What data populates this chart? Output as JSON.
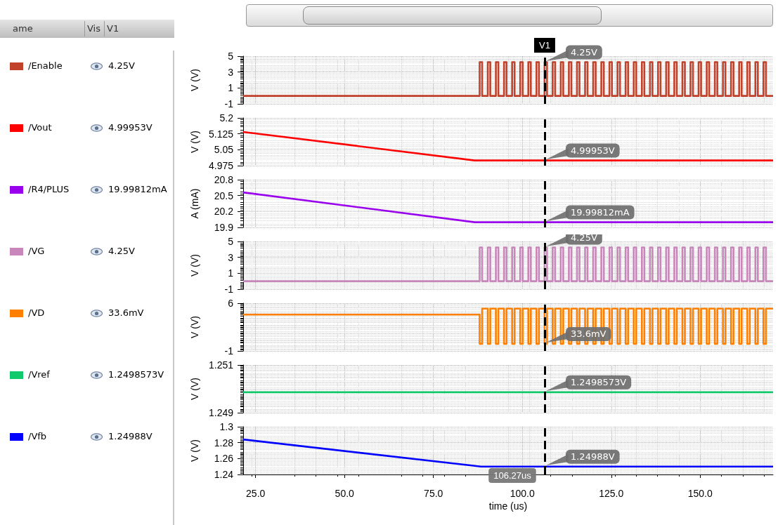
{
  "chart_data": [
    {
      "type": "step",
      "ylabel": "V (V)",
      "xlim": [
        21.5,
        170.5
      ],
      "xticks": [
        25,
        50,
        75,
        100,
        125,
        150
      ],
      "ylim": [
        -1,
        5
      ],
      "yticks": [
        -1,
        1,
        3,
        5
      ],
      "grid": true,
      "legend": "left",
      "marker": "none",
      "tick_labels": "y",
      "series": [
        {
          "name": "/Enable",
          "color": "#c1412a",
          "x": [
            21.5,
            88.0,
            88.7,
            90.28,
            90.98,
            92.56,
            93.26,
            94.84,
            95.54,
            97.12,
            97.82,
            99.4,
            100.1,
            101.68,
            102.38,
            103.96,
            104.66,
            106.24,
            106.94,
            108.52,
            109.22,
            110.8,
            111.5,
            113.08,
            113.78,
            115.36,
            116.06,
            117.64,
            118.34,
            119.92,
            120.62,
            122.2,
            122.9,
            124.48,
            125.18,
            126.76,
            127.46,
            129.04,
            129.74,
            131.32,
            132.02,
            133.6,
            134.3,
            135.88,
            136.58,
            138.16,
            138.86,
            140.44,
            141.14,
            142.72,
            143.42,
            145.0,
            145.7,
            147.28,
            147.98,
            149.56,
            150.26,
            151.84,
            152.54,
            154.12,
            154.82,
            156.4,
            157.1,
            158.68,
            159.38,
            160.96,
            161.66,
            163.24,
            163.94,
            165.52,
            166.22,
            167.8,
            168.5,
            170.5
          ],
          "values": [
            0,
            4.25,
            0,
            4.25,
            0,
            4.25,
            0,
            4.25,
            0,
            4.25,
            0,
            4.25,
            0,
            4.25,
            0,
            4.25,
            0,
            4.25,
            0,
            4.25,
            0,
            4.25,
            0,
            4.25,
            0,
            4.25,
            0,
            4.25,
            0,
            4.25,
            0,
            4.25,
            0,
            4.25,
            0,
            4.25,
            0,
            4.25,
            0,
            4.25,
            0,
            4.25,
            0,
            4.25,
            0,
            4.25,
            0,
            4.25,
            0,
            4.25,
            0,
            4.25,
            0,
            4.25,
            0,
            4.25,
            0,
            4.25,
            0,
            4.25,
            0,
            4.25,
            0,
            4.25,
            0,
            4.25,
            0,
            4.25,
            0,
            4.25,
            0,
            4.25,
            0,
            0
          ]
        }
      ],
      "annotations": [
        "ame",
        "Vis",
        "V1",
        "4.25V",
        "4.25V"
      ],
      "ref_lines": [
        {
          "axis": "x",
          "value": 106.27,
          "label": "V1",
          "color": "#000000",
          "line_style": "dashed"
        }
      ]
    },
    {
      "type": "line",
      "ylabel": "V (V)",
      "xlim": [
        21.5,
        170.5
      ],
      "xticks": [
        25,
        50,
        75,
        100,
        125,
        150
      ],
      "ylim": [
        4.975,
        5.2
      ],
      "yticks": [
        4.975,
        5.05,
        5.125,
        5.2
      ],
      "grid": true,
      "legend": "left",
      "marker": "none",
      "tick_labels": "y",
      "series": [
        {
          "name": "/Vout",
          "color": "#ff0000",
          "x": [
            21.5,
            86.6,
            170.5
          ],
          "values": [
            5.134,
            4.9995,
            4.9995
          ]
        }
      ],
      "annotations": [
        "4.99953V",
        "4.99953V"
      ],
      "ref_lines": [
        {
          "axis": "x",
          "value": 106.27,
          "color": "#000000",
          "line_style": "dashed"
        }
      ]
    },
    {
      "type": "line",
      "ylabel": "A (mA)",
      "xlim": [
        21.5,
        170.5
      ],
      "xticks": [
        25,
        50,
        75,
        100,
        125,
        150
      ],
      "ylim": [
        19.9,
        20.8
      ],
      "yticks": [
        19.9,
        20.2,
        20.5,
        20.8
      ],
      "grid": true,
      "legend": "left",
      "marker": "none",
      "tick_labels": "y",
      "series": [
        {
          "name": "/R4/PLUS",
          "color": "#9900ee",
          "x": [
            21.5,
            86.6,
            170.5
          ],
          "values": [
            20.56,
            19.998,
            19.998
          ]
        }
      ],
      "annotations": [
        "19.99812mA",
        "19.99812mA"
      ],
      "ref_lines": [
        {
          "axis": "x",
          "value": 106.27,
          "color": "#000000",
          "line_style": "dashed"
        }
      ]
    },
    {
      "type": "step",
      "ylabel": "V (V)",
      "xlim": [
        21.5,
        170.5
      ],
      "xticks": [
        25,
        50,
        75,
        100,
        125,
        150
      ],
      "ylim": [
        -1,
        5
      ],
      "yticks": [
        -1,
        1,
        3,
        5
      ],
      "grid": true,
      "legend": "left",
      "marker": "none",
      "tick_labels": "y",
      "series": [
        {
          "name": "/VG",
          "color": "#c986bb",
          "x": [
            21.5,
            88.0,
            88.7,
            90.28,
            90.98,
            92.56,
            93.26,
            94.84,
            95.54,
            97.12,
            97.82,
            99.4,
            100.1,
            101.68,
            102.38,
            103.96,
            104.66,
            106.24,
            106.94,
            108.52,
            109.22,
            110.8,
            111.5,
            113.08,
            113.78,
            115.36,
            116.06,
            117.64,
            118.34,
            119.92,
            120.62,
            122.2,
            122.9,
            124.48,
            125.18,
            126.76,
            127.46,
            129.04,
            129.74,
            131.32,
            132.02,
            133.6,
            134.3,
            135.88,
            136.58,
            138.16,
            138.86,
            140.44,
            141.14,
            142.72,
            143.42,
            145.0,
            145.7,
            147.28,
            147.98,
            149.56,
            150.26,
            151.84,
            152.54,
            154.12,
            154.82,
            156.4,
            157.1,
            158.68,
            159.38,
            160.96,
            161.66,
            163.24,
            163.94,
            165.52,
            166.22,
            167.8,
            168.5,
            170.5
          ],
          "values": [
            0,
            4.25,
            0,
            4.25,
            0,
            4.25,
            0,
            4.25,
            0,
            4.25,
            0,
            4.25,
            0,
            4.25,
            0,
            4.25,
            0,
            4.25,
            0,
            4.25,
            0,
            4.25,
            0,
            4.25,
            0,
            4.25,
            0,
            4.25,
            0,
            4.25,
            0,
            4.25,
            0,
            4.25,
            0,
            4.25,
            0,
            4.25,
            0,
            4.25,
            0,
            4.25,
            0,
            4.25,
            0,
            4.25,
            0,
            4.25,
            0,
            4.25,
            0,
            4.25,
            0,
            4.25,
            0,
            4.25,
            0,
            4.25,
            0,
            4.25,
            0,
            4.25,
            0,
            4.25,
            0,
            4.25,
            0,
            4.25,
            0,
            4.25,
            0,
            4.25,
            0,
            0
          ]
        }
      ],
      "annotations": [
        "4.25V",
        "4.25V"
      ],
      "ref_lines": [
        {
          "axis": "x",
          "value": 106.27,
          "color": "#000000",
          "line_style": "dashed"
        }
      ]
    },
    {
      "type": "step",
      "ylabel": "V (V)",
      "xlim": [
        21.5,
        170.5
      ],
      "xticks": [
        25,
        50,
        75,
        100,
        125,
        150
      ],
      "ylim": [
        -1,
        6
      ],
      "yticks": [
        -1,
        6
      ],
      "grid": true,
      "legend": "left",
      "marker": "none",
      "tick_labels": "y",
      "series": [
        {
          "name": "/VD",
          "color": "#ff8000",
          "x": [
            21.5,
            88.0,
            88.7,
            90.28,
            90.98,
            92.56,
            93.26,
            94.84,
            95.54,
            97.12,
            97.82,
            99.4,
            100.1,
            101.68,
            102.38,
            103.96,
            104.66,
            106.24,
            106.94,
            108.52,
            109.22,
            110.8,
            111.5,
            113.08,
            113.78,
            115.36,
            116.06,
            117.64,
            118.34,
            119.92,
            120.62,
            122.2,
            122.9,
            124.48,
            125.18,
            126.76,
            127.46,
            129.04,
            129.74,
            131.32,
            132.02,
            133.6,
            134.3,
            135.88,
            136.58,
            138.16,
            138.86,
            140.44,
            141.14,
            142.72,
            143.42,
            145.0,
            145.7,
            147.28,
            147.98,
            149.56,
            150.26,
            151.84,
            152.54,
            154.12,
            154.82,
            156.4,
            157.1,
            158.68,
            159.38,
            160.96,
            161.66,
            163.24,
            163.94,
            165.52,
            166.22,
            167.8,
            168.5,
            170.5
          ],
          "values": [
            4.33,
            0.0336,
            5.2,
            0.0336,
            5.2,
            0.0336,
            5.2,
            0.0336,
            5.2,
            0.0336,
            5.2,
            0.0336,
            5.2,
            0.0336,
            5.2,
            0.0336,
            5.2,
            0.0336,
            5.2,
            0.0336,
            5.2,
            0.0336,
            5.2,
            0.0336,
            5.2,
            0.0336,
            5.2,
            0.0336,
            5.2,
            0.0336,
            5.2,
            0.0336,
            5.2,
            0.0336,
            5.2,
            0.0336,
            5.2,
            0.0336,
            5.2,
            0.0336,
            5.2,
            0.0336,
            5.2,
            0.0336,
            5.2,
            0.0336,
            5.2,
            0.0336,
            5.2,
            0.0336,
            5.2,
            0.0336,
            5.2,
            0.0336,
            5.2,
            0.0336,
            5.2,
            0.0336,
            5.2,
            0.0336,
            5.2,
            0.0336,
            5.2,
            0.0336,
            5.2,
            0.0336,
            5.2,
            0.0336,
            5.2,
            0.0336,
            5.2,
            0.0336,
            5.2,
            5.2
          ]
        }
      ],
      "annotations": [
        "33.6mV",
        "33.6mV"
      ],
      "ref_lines": [
        {
          "axis": "x",
          "value": 106.27,
          "color": "#000000",
          "line_style": "dashed"
        }
      ]
    },
    {
      "type": "line",
      "ylabel": "V (V)",
      "xlim": [
        21.5,
        170.5
      ],
      "xticks": [
        25,
        50,
        75,
        100,
        125,
        150
      ],
      "ylim": [
        1.249,
        1.251
      ],
      "yticks": [
        1.249,
        1.251
      ],
      "grid": true,
      "legend": "left",
      "marker": "none",
      "tick_labels": "y",
      "series": [
        {
          "name": "/Vref",
          "color": "#10c96a",
          "x": [
            21.5,
            170.5
          ],
          "values": [
            1.2498573,
            1.2498573
          ]
        }
      ],
      "annotations": [
        "1.2498573V",
        "1.2498573V"
      ],
      "ref_lines": [
        {
          "axis": "x",
          "value": 106.27,
          "color": "#000000",
          "line_style": "dashed"
        }
      ]
    },
    {
      "type": "line",
      "ylabel": "V (V)",
      "xlabel": "time (us)",
      "xlim": [
        21.5,
        170.5
      ],
      "xticks": [
        {
          "value": 25,
          "label": "25.0"
        },
        {
          "value": 50,
          "label": "50.0"
        },
        {
          "value": 75,
          "label": "75.0"
        },
        {
          "value": 100,
          "label": "100.0"
        },
        {
          "value": 125,
          "label": "125.0"
        },
        {
          "value": 150,
          "label": "150.0"
        }
      ],
      "ylim": [
        1.24,
        1.3
      ],
      "yticks": [
        1.24,
        1.26,
        1.28,
        1.3
      ],
      "grid": true,
      "legend": "left",
      "marker": "none",
      "series": [
        {
          "name": "/Vfb",
          "color": "#0000ff",
          "x": [
            21.5,
            88.4,
            170.5
          ],
          "values": [
            1.284,
            1.24988,
            1.24988
          ]
        }
      ],
      "annotations": [
        "1.24988V",
        "1.24988V"
      ],
      "ref_lines": [
        {
          "axis": "x",
          "value": 106.27,
          "label": "106.27us",
          "color": "#000000",
          "line_style": "dashed"
        }
      ]
    }
  ]
}
